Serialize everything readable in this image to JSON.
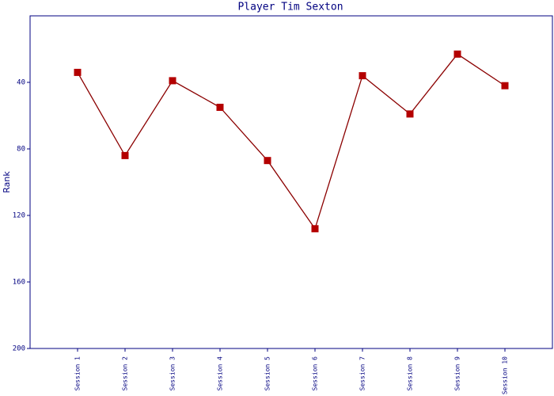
{
  "chart_data": {
    "type": "line",
    "title": "Player Tim Sexton",
    "y_label": "Rank",
    "categories": [
      "Session 1",
      "Session 2",
      "Session 3",
      "Session 4",
      "Session 5",
      "Session 6",
      "Session 7",
      "Session 8",
      "Session 9",
      "Session 10"
    ],
    "values": [
      34,
      84,
      39,
      55,
      87,
      128,
      36,
      59,
      23,
      42
    ],
    "color": "#b40000",
    "line_color": "#8b0000",
    "ylim": [
      200,
      0
    ],
    "yticks": [
      40,
      80,
      120,
      160,
      200
    ]
  }
}
